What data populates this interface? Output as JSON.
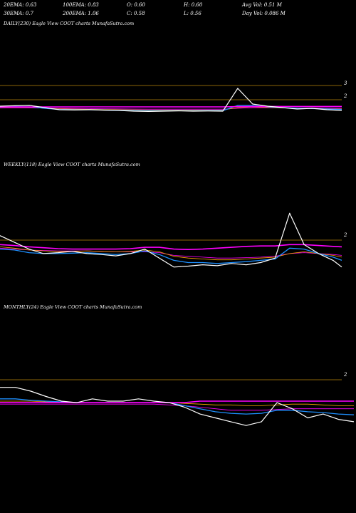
{
  "header": {
    "row1": [
      "20EMA: 0.63",
      "100EMA: 0.83",
      "O: 0.60",
      "H: 0.60",
      "Avg Vol: 0.51  M"
    ],
    "row2": [
      "30EMA: 0.7",
      "200EMA: 1.06",
      "C: 0.58",
      "L: 0.56",
      "Day Vol: 0.086  M"
    ]
  },
  "colors": {
    "price": "#ffffff",
    "ema_fast": "#1e90ff",
    "ema_mid": "#ff00ff",
    "ema_slow": "#ffa500",
    "axis": "#b8860b"
  },
  "chart_data": [
    {
      "type": "line",
      "title": "DAILY(230) Eagle   View  COOT charts MunafaSutra.com",
      "y_tick_labels": [
        "3",
        "2"
      ],
      "x": [
        0,
        10,
        20,
        30,
        40,
        50,
        60,
        70,
        80,
        90,
        100,
        110,
        120,
        130,
        140,
        150,
        160,
        170,
        180,
        190,
        200,
        210,
        220,
        230
      ],
      "series": [
        {
          "values": [
            1.55,
            1.58,
            1.6,
            1.45,
            1.3,
            1.28,
            1.3,
            1.27,
            1.25,
            1.2,
            1.18,
            1.2,
            1.22,
            1.2,
            1.21,
            1.2,
            2.8,
            1.7,
            1.55,
            1.45,
            1.35,
            1.4,
            1.3,
            1.25
          ]
        },
        {
          "values": [
            1.48,
            1.52,
            1.5,
            1.4,
            1.32,
            1.3,
            1.3,
            1.28,
            1.26,
            1.24,
            1.23,
            1.23,
            1.24,
            1.23,
            1.24,
            1.24,
            1.6,
            1.6,
            1.5,
            1.45,
            1.4,
            1.38,
            1.35,
            1.32
          ]
        },
        {
          "values": [
            1.46,
            1.48,
            1.47,
            1.4,
            1.36,
            1.34,
            1.33,
            1.32,
            1.3,
            1.29,
            1.28,
            1.28,
            1.28,
            1.28,
            1.28,
            1.28,
            1.45,
            1.5,
            1.46,
            1.43,
            1.41,
            1.39,
            1.37,
            1.35
          ]
        },
        {
          "values": [
            1.5,
            1.5,
            1.5,
            1.5,
            1.5,
            1.5,
            1.5,
            1.5,
            1.5,
            1.5,
            1.5,
            1.5,
            1.5,
            1.5,
            1.5,
            1.5,
            1.52,
            1.53,
            1.53,
            1.53,
            1.53,
            1.53,
            1.53,
            1.53
          ]
        },
        {
          "values": [
            1.42,
            1.43,
            1.43,
            1.42,
            1.4,
            1.39,
            1.38,
            1.37,
            1.36,
            1.35,
            1.34,
            1.34,
            1.34,
            1.34,
            1.34,
            1.34,
            1.4,
            1.44,
            1.44,
            1.43,
            1.42,
            1.42,
            1.41,
            1.4
          ]
        }
      ]
    },
    {
      "type": "line",
      "title": "WEEKLY(118) Eagle   View  COOT charts MunafaSutra.com",
      "y_tick_labels": [
        "2"
      ],
      "x": [
        0,
        5,
        10,
        15,
        20,
        25,
        30,
        35,
        40,
        45,
        50,
        55,
        60,
        65,
        70,
        75,
        80,
        85,
        90,
        95,
        100,
        105,
        110,
        115,
        118
      ],
      "series": [
        {
          "values": [
            2.1,
            1.95,
            1.8,
            1.7,
            1.72,
            1.75,
            1.7,
            1.68,
            1.65,
            1.7,
            1.8,
            1.6,
            1.4,
            1.42,
            1.45,
            1.43,
            1.48,
            1.45,
            1.5,
            1.6,
            2.6,
            1.9,
            1.7,
            1.55,
            1.4
          ]
        },
        {
          "values": [
            1.8,
            1.78,
            1.72,
            1.7,
            1.7,
            1.71,
            1.72,
            1.7,
            1.68,
            1.7,
            1.76,
            1.68,
            1.55,
            1.5,
            1.5,
            1.48,
            1.5,
            1.52,
            1.55,
            1.58,
            1.82,
            1.8,
            1.7,
            1.62,
            1.55
          ]
        },
        {
          "values": [
            1.85,
            1.82,
            1.78,
            1.76,
            1.75,
            1.75,
            1.76,
            1.75,
            1.74,
            1.75,
            1.78,
            1.74,
            1.64,
            1.6,
            1.58,
            1.56,
            1.56,
            1.58,
            1.6,
            1.62,
            1.7,
            1.74,
            1.7,
            1.66,
            1.62
          ]
        },
        {
          "values": [
            1.9,
            1.88,
            1.85,
            1.83,
            1.81,
            1.8,
            1.8,
            1.8,
            1.8,
            1.81,
            1.84,
            1.84,
            1.8,
            1.79,
            1.8,
            1.82,
            1.84,
            1.86,
            1.87,
            1.87,
            1.9,
            1.9,
            1.88,
            1.86,
            1.85
          ]
        },
        {
          "values": [
            1.82,
            1.8,
            1.78,
            1.77,
            1.76,
            1.76,
            1.76,
            1.75,
            1.74,
            1.74,
            1.74,
            1.72,
            1.66,
            1.64,
            1.62,
            1.6,
            1.6,
            1.61,
            1.62,
            1.64,
            1.7,
            1.72,
            1.7,
            1.68,
            1.66
          ]
        }
      ]
    },
    {
      "type": "line",
      "title": "MONTHLY(24) Eagle   View  COOT charts MunafaSutra.com",
      "y_tick_labels": [
        "2"
      ],
      "x": [
        0,
        1,
        2,
        3,
        4,
        5,
        6,
        7,
        8,
        9,
        10,
        11,
        12,
        13,
        14,
        15,
        16,
        17,
        18,
        19,
        20,
        21,
        22,
        23
      ],
      "series": [
        {
          "values": [
            1.9,
            1.9,
            1.85,
            1.78,
            1.72,
            1.7,
            1.75,
            1.72,
            1.72,
            1.75,
            1.72,
            1.7,
            1.64,
            1.55,
            1.5,
            1.45,
            1.4,
            1.45,
            1.7,
            1.62,
            1.5,
            1.55,
            1.48,
            1.45
          ]
        },
        {
          "values": [
            1.75,
            1.75,
            1.73,
            1.72,
            1.71,
            1.7,
            1.7,
            1.7,
            1.7,
            1.7,
            1.7,
            1.7,
            1.66,
            1.62,
            1.58,
            1.56,
            1.55,
            1.56,
            1.6,
            1.6,
            1.58,
            1.57,
            1.55,
            1.54
          ]
        },
        {
          "values": [
            1.72,
            1.72,
            1.72,
            1.71,
            1.71,
            1.7,
            1.7,
            1.7,
            1.7,
            1.7,
            1.7,
            1.7,
            1.69,
            1.68,
            1.67,
            1.67,
            1.66,
            1.66,
            1.67,
            1.68,
            1.68,
            1.67,
            1.66,
            1.66
          ]
        },
        {
          "values": [
            1.7,
            1.7,
            1.7,
            1.7,
            1.7,
            1.7,
            1.7,
            1.7,
            1.7,
            1.7,
            1.7,
            1.7,
            1.7,
            1.72,
            1.72,
            1.72,
            1.72,
            1.72,
            1.72,
            1.72,
            1.72,
            1.72,
            1.72,
            1.72
          ]
        },
        {
          "values": [
            1.68,
            1.68,
            1.68,
            1.68,
            1.68,
            1.68,
            1.68,
            1.68,
            1.68,
            1.68,
            1.68,
            1.67,
            1.66,
            1.64,
            1.62,
            1.6,
            1.6,
            1.6,
            1.61,
            1.62,
            1.62,
            1.62,
            1.62,
            1.62
          ]
        }
      ]
    }
  ]
}
